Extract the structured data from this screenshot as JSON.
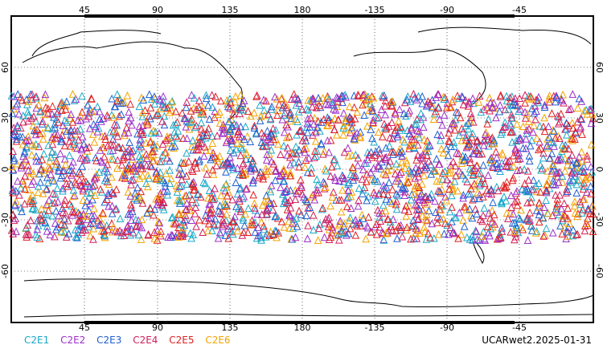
{
  "map": {
    "top_lon_labels": [
      "45",
      "90",
      "135",
      "180",
      "-135",
      "-90",
      "-45"
    ],
    "bottom_lon_labels": [
      "45",
      "90",
      "135",
      "180",
      "-135",
      "-90",
      "-45"
    ],
    "lat_labels": [
      "60",
      "30",
      "0",
      "-30",
      "-60"
    ],
    "lat_range": [
      -90,
      90
    ],
    "lon_range_east": [
      0,
      360
    ],
    "grid_lines": "dotted",
    "marker_shape": "triangle-outline",
    "lat_band_of_markers": [
      -40,
      45
    ]
  },
  "legend": [
    {
      "label": "C2E1",
      "color": "#19a9c8"
    },
    {
      "label": "C2E2",
      "color": "#9b2fc9"
    },
    {
      "label": "C2E3",
      "color": "#1f5fd0"
    },
    {
      "label": "C2E4",
      "color": "#d01f5a"
    },
    {
      "label": "C2E5",
      "color": "#e02020"
    },
    {
      "label": "C2E6",
      "color": "#f4a300"
    }
  ],
  "stamp": "UCARwet2.2025-01-31"
}
